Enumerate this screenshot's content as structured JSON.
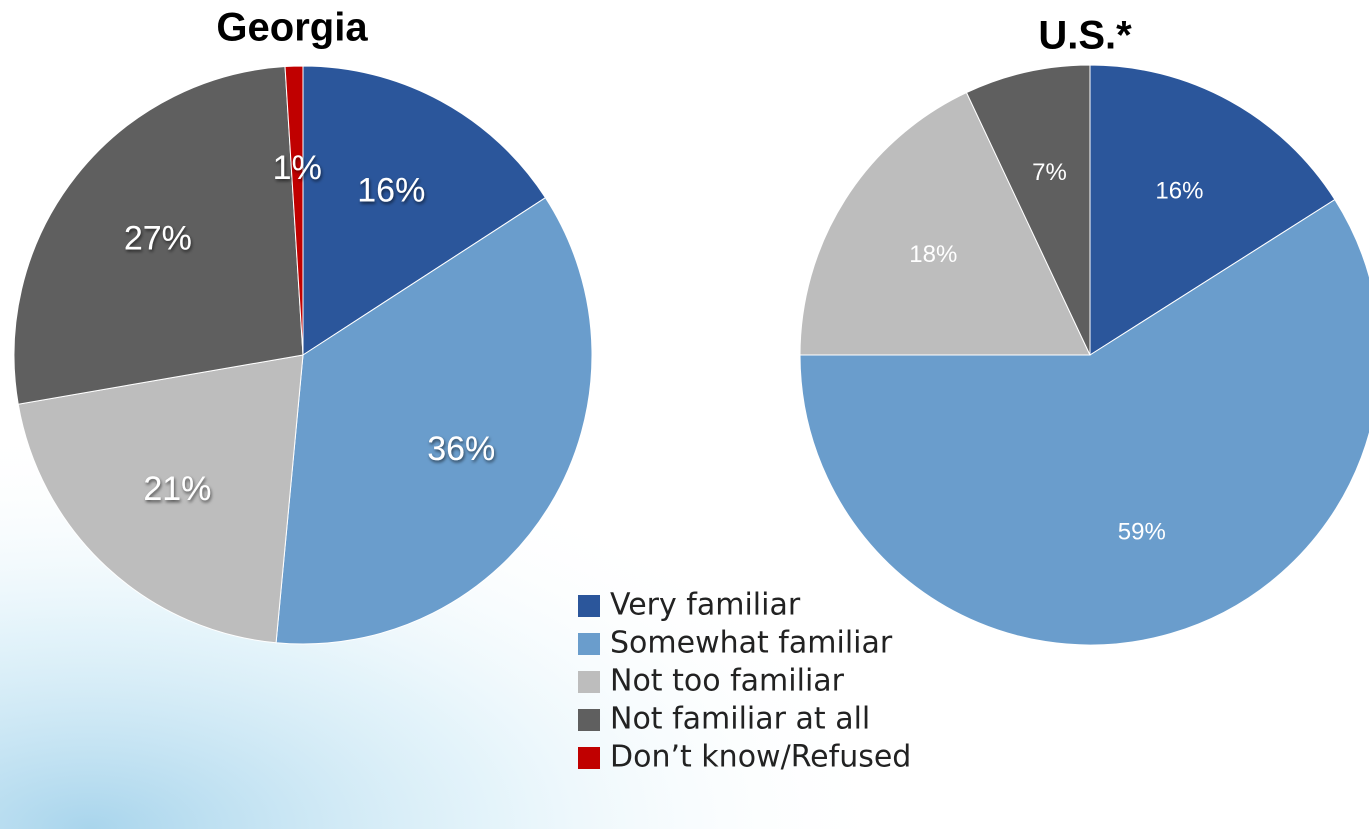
{
  "chart_data": [
    {
      "type": "pie",
      "title": "Georgia",
      "categories": [
        "Very familiar",
        "Somewhat familiar",
        "Not too familiar",
        "Not familiar at all",
        "Don’t know/Refused"
      ],
      "values": [
        16,
        36,
        21,
        27,
        1
      ],
      "value_labels": [
        "16%",
        "36%",
        "21%",
        "27%",
        "1%"
      ],
      "colors": [
        "#2b569b",
        "#6a9dcc",
        "#bdbdbd",
        "#5f5f5f",
        "#c00000"
      ]
    },
    {
      "type": "pie",
      "title": "U.S.*",
      "categories": [
        "Very familiar",
        "Somewhat familiar",
        "Not too familiar",
        "Not familiar at all"
      ],
      "values": [
        16,
        59,
        18,
        7
      ],
      "value_labels": [
        "16%",
        "59%",
        "18%",
        "7%"
      ],
      "colors": [
        "#2b569b",
        "#6a9dcc",
        "#bdbdbd",
        "#5f5f5f"
      ]
    }
  ]
}
